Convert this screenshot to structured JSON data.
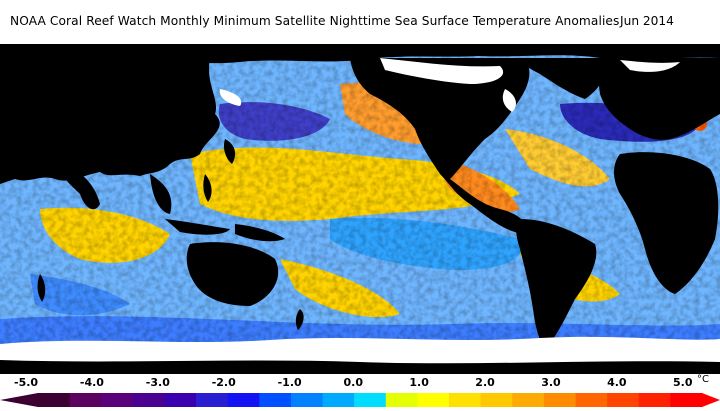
{
  "title": "NOAA Coral Reef Watch Monthly Minimum Satellite Nighttime Sea Surface Temperature Anomalies",
  "date": "Jun 2014",
  "legend": {
    "ticks": [
      "-5.0",
      "-4.0",
      "-3.0",
      "-2.0",
      "-1.0",
      "0.0",
      "1.0",
      "2.0",
      "3.0",
      "4.0",
      "5.0"
    ],
    "unit": "°C",
    "colors": [
      "#3d0033",
      "#5c0060",
      "#5a007a",
      "#4b0090",
      "#3a00b0",
      "#2a1fd0",
      "#1212f5",
      "#0050ff",
      "#0082ff",
      "#00aaff",
      "#00ddff",
      "#e6ff00",
      "#ffff00",
      "#ffe000",
      "#ffc800",
      "#ffaa00",
      "#ff8c00",
      "#ff6600",
      "#ff4400",
      "#ff2200",
      "#ff0000"
    ]
  },
  "map_colors": {
    "land": "#000000",
    "ice": "#ffffff",
    "ocean_neutral": "#7fc3ff",
    "warm": "#ffd400",
    "hot": "#ff8a1e",
    "cool": "#3f8cff",
    "cold": "#2a2ab8"
  }
}
